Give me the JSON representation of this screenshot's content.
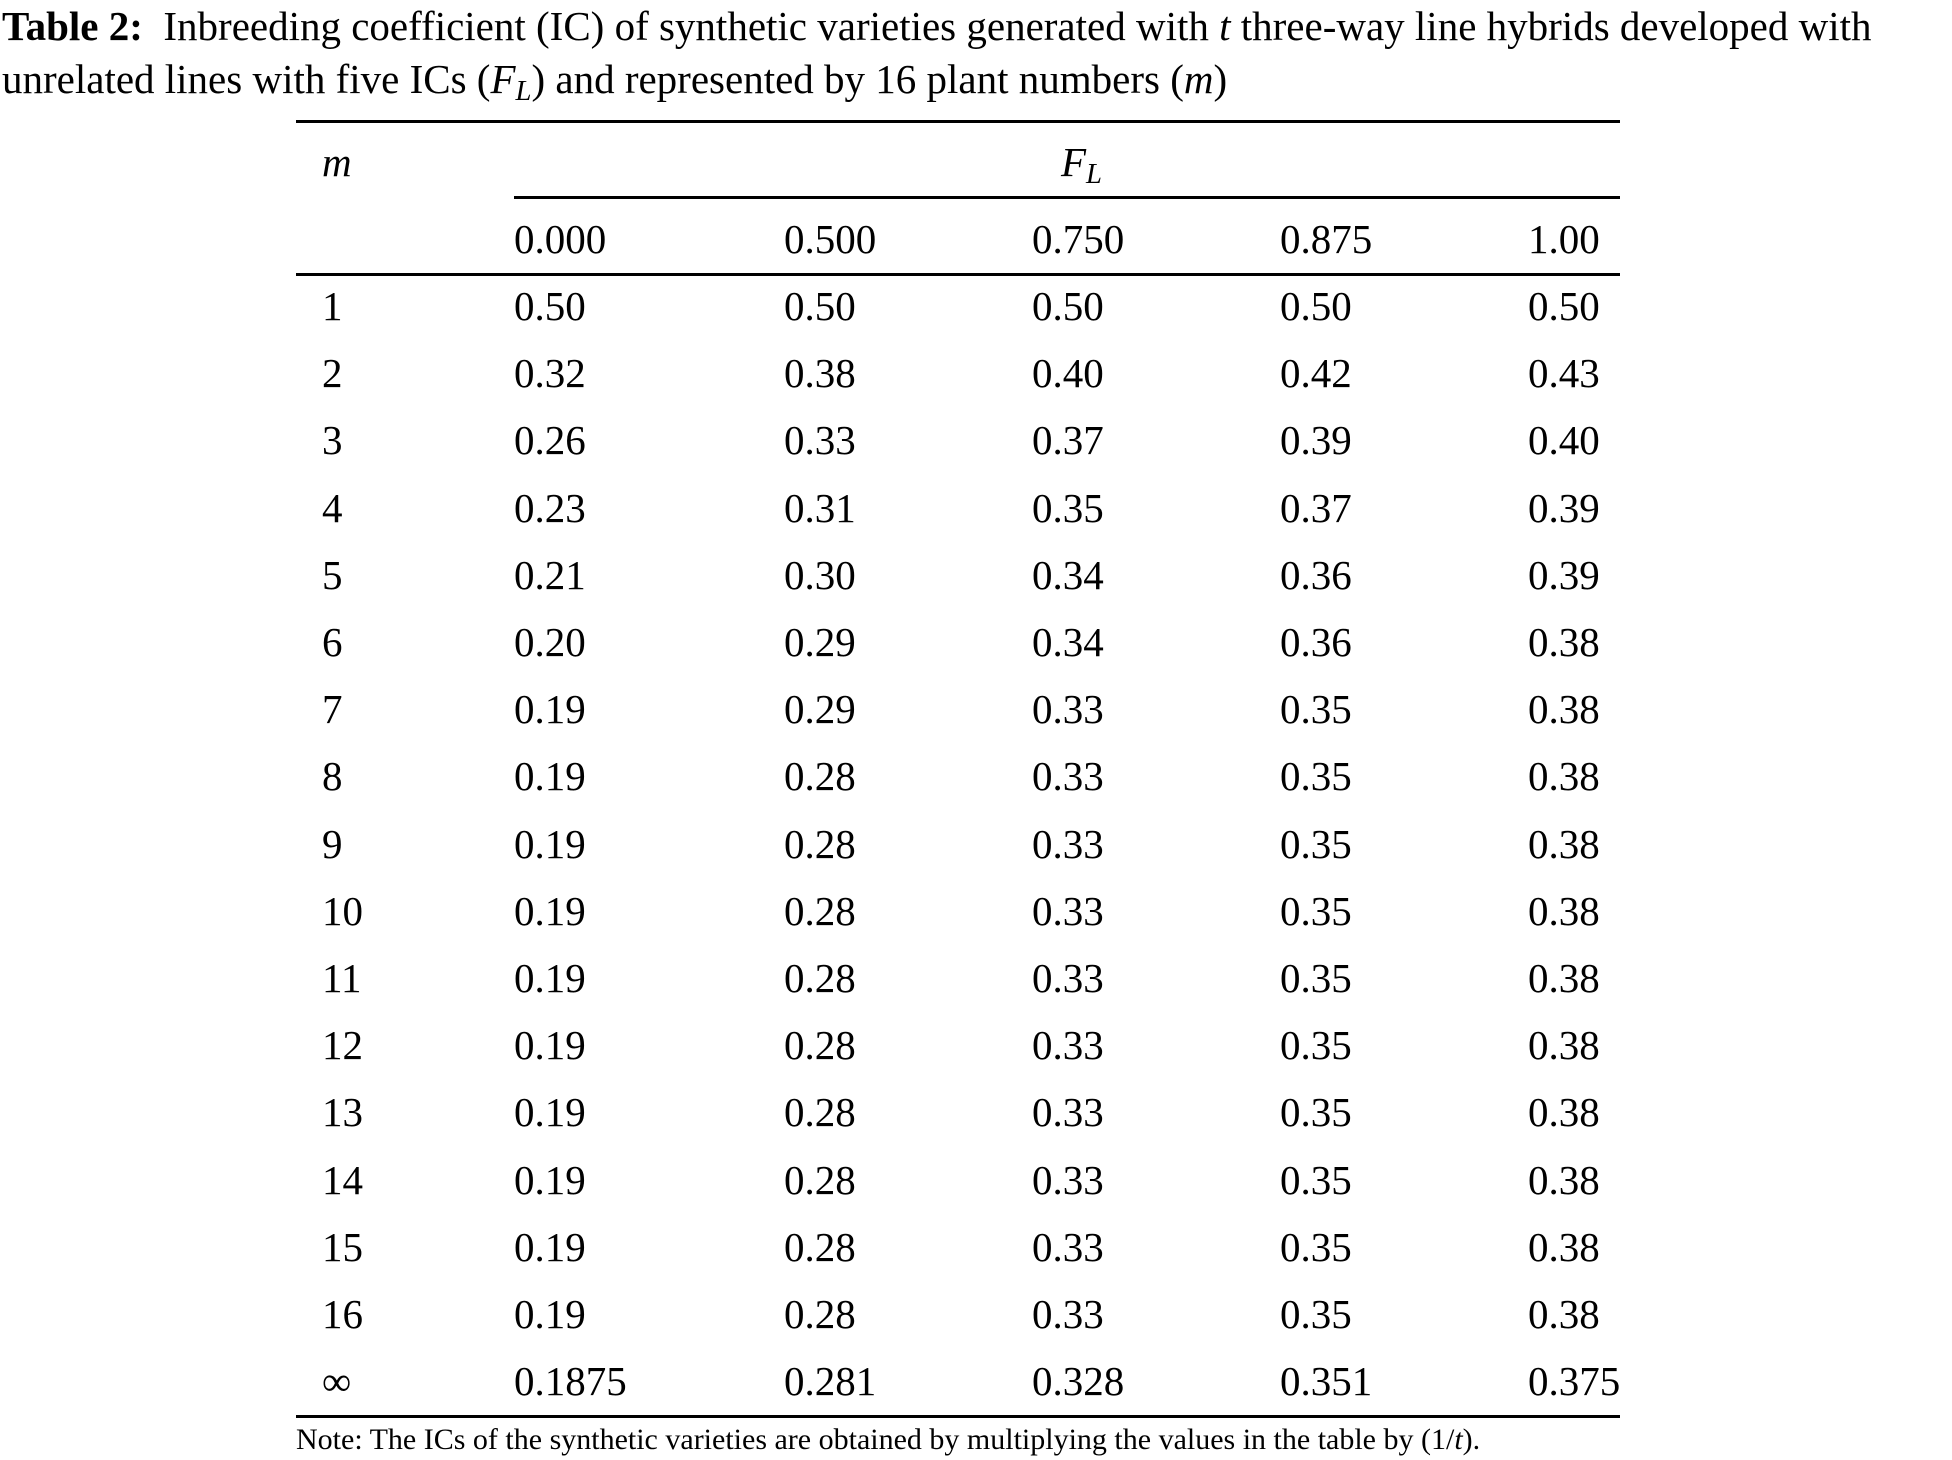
{
  "caption": {
    "label": "Table 2:",
    "text_part1": "Inbreeding coefficient (IC) of synthetic varieties generated with",
    "t_symbol": "t",
    "text_part2": "three-way line hybrids developed with unrelated lines with five ICs (",
    "fl_main": "F",
    "fl_sub": "L",
    "text_part3": ") and represented by 16 plant numbers (",
    "m_symbol": "m",
    "text_part4": ")"
  },
  "table": {
    "row_header": "m",
    "group_header_main": "F",
    "group_header_sub": "L",
    "columns": [
      "0.000",
      "0.500",
      "0.750",
      "0.875",
      "1.00"
    ],
    "rows": [
      {
        "m": "1",
        "values": [
          "0.50",
          "0.50",
          "0.50",
          "0.50",
          "0.50"
        ]
      },
      {
        "m": "2",
        "values": [
          "0.32",
          "0.38",
          "0.40",
          "0.42",
          "0.43"
        ]
      },
      {
        "m": "3",
        "values": [
          "0.26",
          "0.33",
          "0.37",
          "0.39",
          "0.40"
        ]
      },
      {
        "m": "4",
        "values": [
          "0.23",
          "0.31",
          "0.35",
          "0.37",
          "0.39"
        ]
      },
      {
        "m": "5",
        "values": [
          "0.21",
          "0.30",
          "0.34",
          "0.36",
          "0.39"
        ]
      },
      {
        "m": "6",
        "values": [
          "0.20",
          "0.29",
          "0.34",
          "0.36",
          "0.38"
        ]
      },
      {
        "m": "7",
        "values": [
          "0.19",
          "0.29",
          "0.33",
          "0.35",
          "0.38"
        ]
      },
      {
        "m": "8",
        "values": [
          "0.19",
          "0.28",
          "0.33",
          "0.35",
          "0.38"
        ]
      },
      {
        "m": "9",
        "values": [
          "0.19",
          "0.28",
          "0.33",
          "0.35",
          "0.38"
        ]
      },
      {
        "m": "10",
        "values": [
          "0.19",
          "0.28",
          "0.33",
          "0.35",
          "0.38"
        ]
      },
      {
        "m": "11",
        "values": [
          "0.19",
          "0.28",
          "0.33",
          "0.35",
          "0.38"
        ]
      },
      {
        "m": "12",
        "values": [
          "0.19",
          "0.28",
          "0.33",
          "0.35",
          "0.38"
        ]
      },
      {
        "m": "13",
        "values": [
          "0.19",
          "0.28",
          "0.33",
          "0.35",
          "0.38"
        ]
      },
      {
        "m": "14",
        "values": [
          "0.19",
          "0.28",
          "0.33",
          "0.35",
          "0.38"
        ]
      },
      {
        "m": "15",
        "values": [
          "0.19",
          "0.28",
          "0.33",
          "0.35",
          "0.38"
        ]
      },
      {
        "m": "16",
        "values": [
          "0.19",
          "0.28",
          "0.33",
          "0.35",
          "0.38"
        ]
      },
      {
        "m": "∞",
        "values": [
          "0.1875",
          "0.281",
          "0.328",
          "0.351",
          "0.375"
        ]
      }
    ]
  },
  "note": {
    "text_part1": "Note: The ICs of the synthetic varieties are obtained by multiplying the values in the table by (1/",
    "t_symbol": "t",
    "text_part2": ")."
  }
}
